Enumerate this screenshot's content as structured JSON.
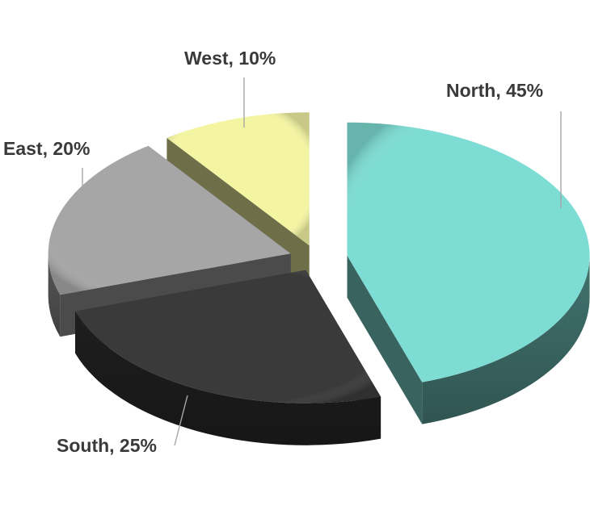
{
  "chart_data": {
    "type": "pie",
    "variant": "3d-exploded",
    "title": "",
    "slices": [
      {
        "category": "North",
        "value": 45,
        "label": "North, 45%",
        "color": "#7ddcd3",
        "exploded": true
      },
      {
        "category": "South",
        "value": 25,
        "label": "South, 25%",
        "color": "#3a3a3a",
        "exploded": true
      },
      {
        "category": "East",
        "value": 20,
        "label": "East, 20%",
        "color": "#a6a6a6",
        "exploded": true
      },
      {
        "category": "West",
        "value": 10,
        "label": "West, 10%",
        "color": "#f4f5a3",
        "exploded": true
      }
    ],
    "legend": "none",
    "data_labels": "outside-with-leader-lines"
  }
}
